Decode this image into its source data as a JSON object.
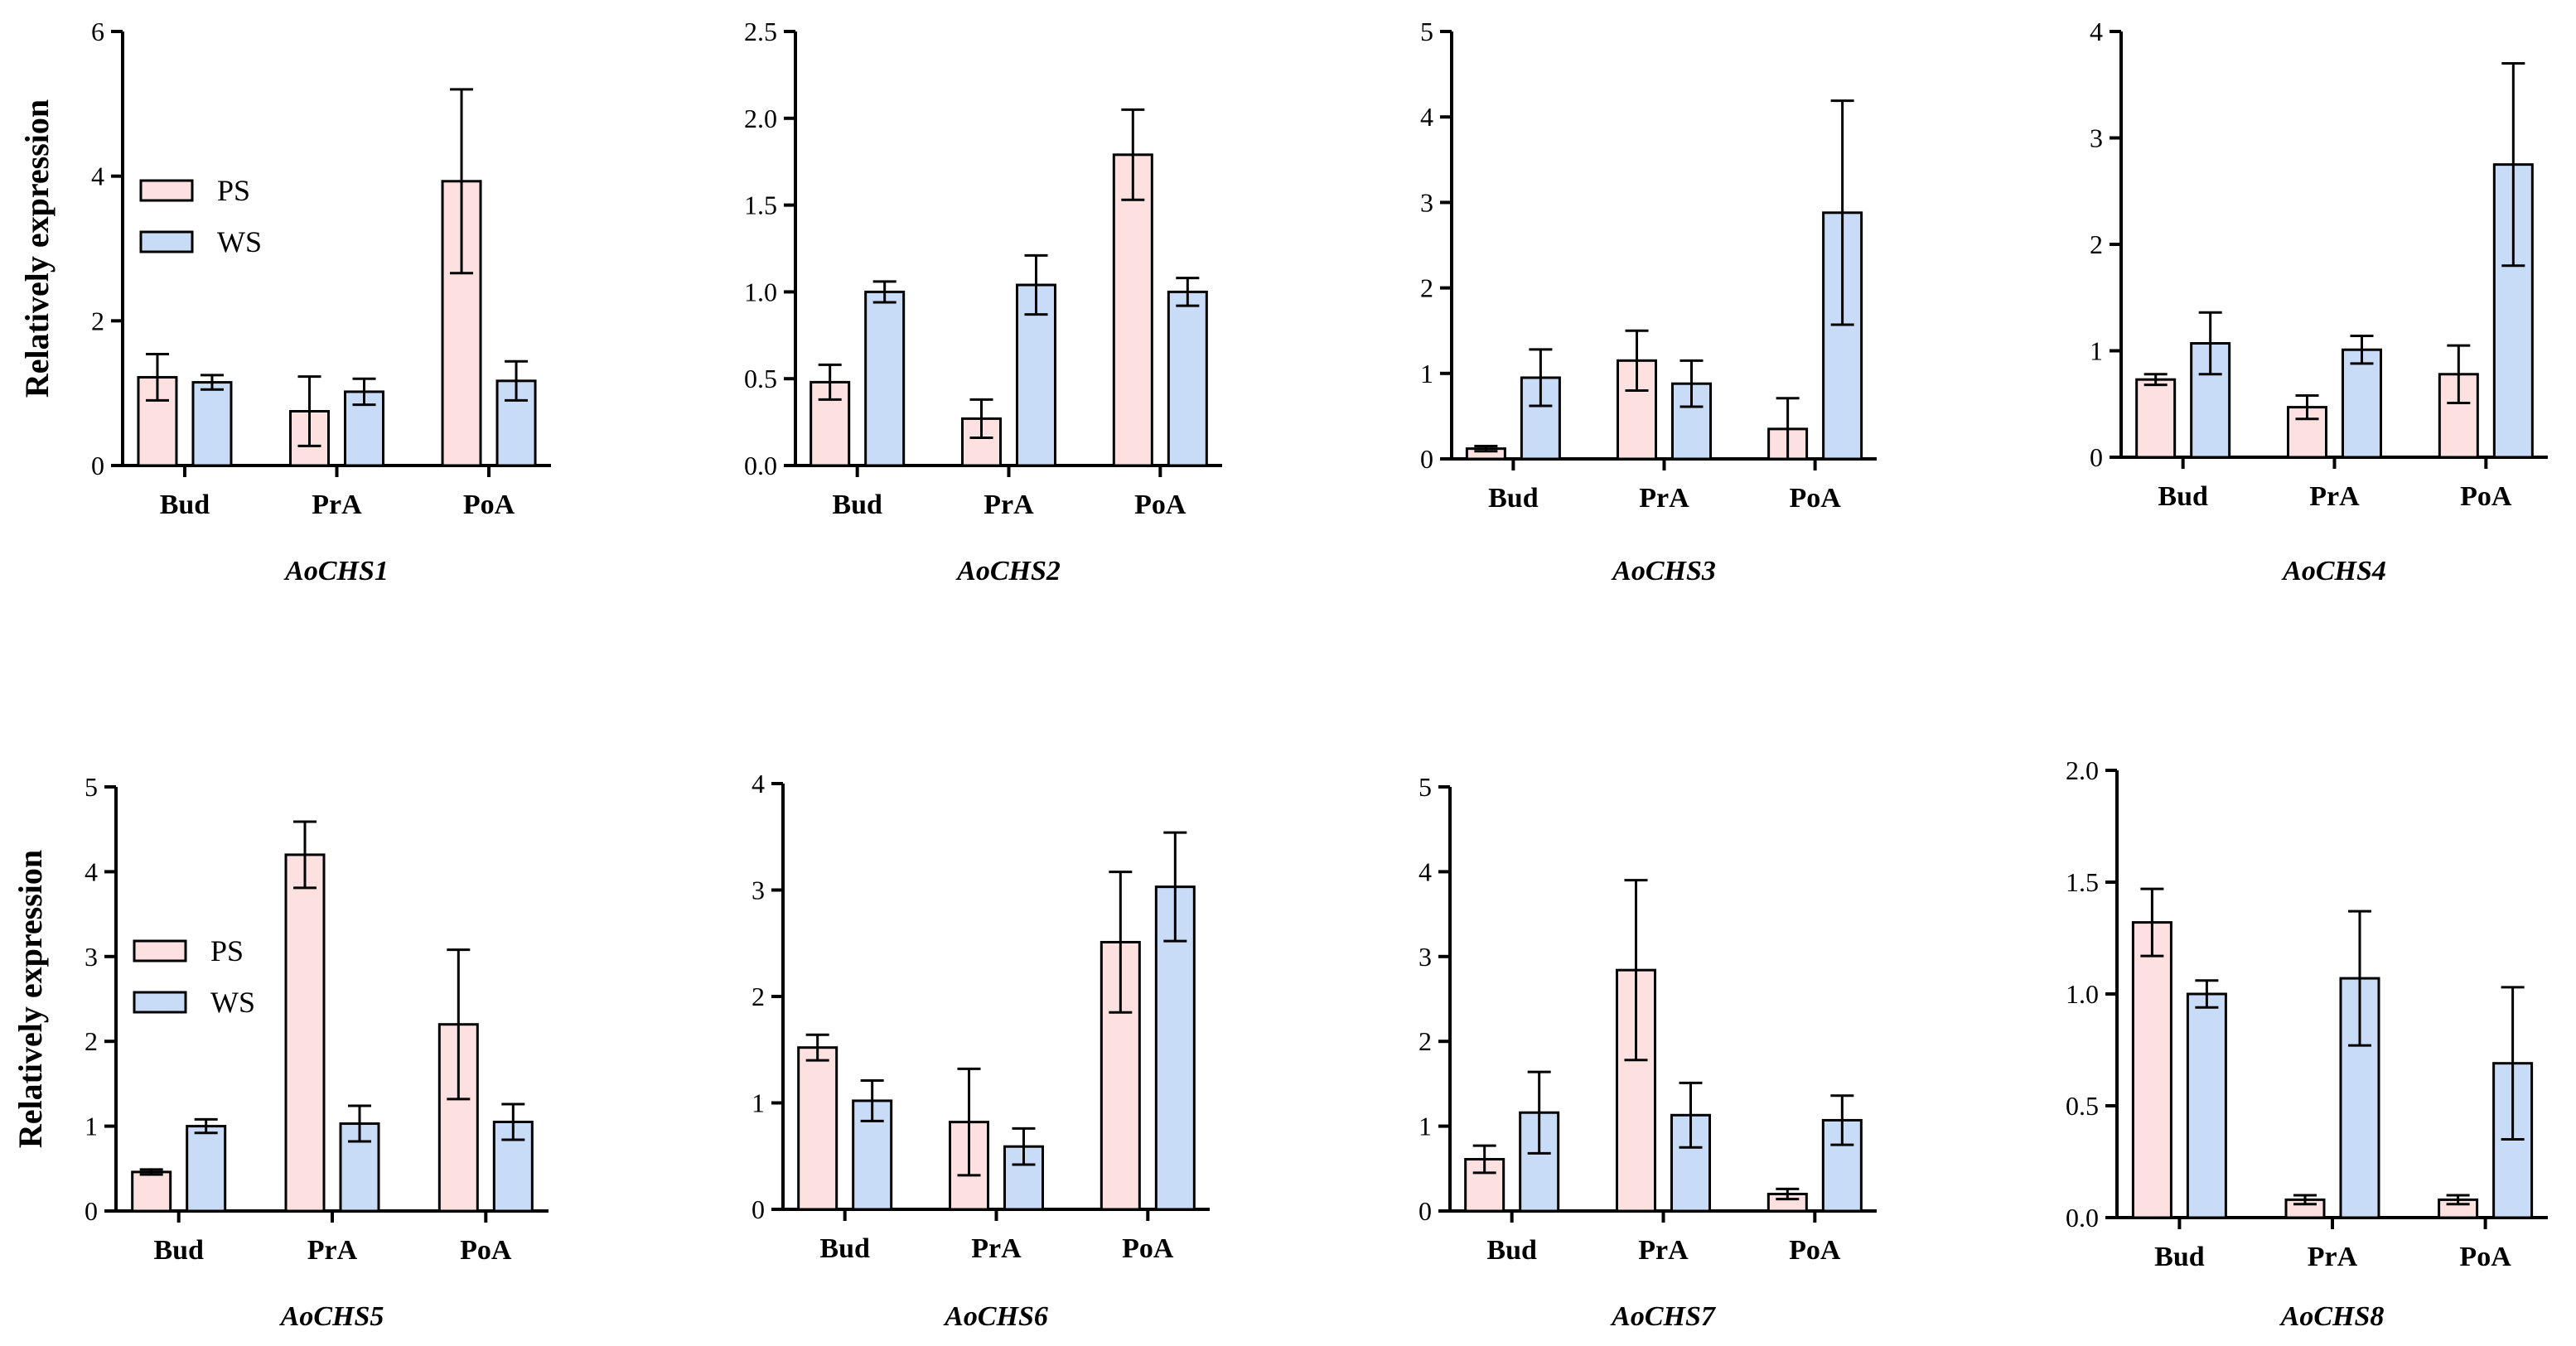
{
  "y_axis_title": "Relatively expression",
  "colors": {
    "PS": "#fde0e0",
    "WS": "#c9dcf7",
    "axis": "#000000"
  },
  "legend": [
    "PS",
    "WS"
  ],
  "chart_data": [
    {
      "type": "bar",
      "title": "AoCHS1",
      "xlabel": "",
      "ylabel": "Relatively expression",
      "categories": [
        "Bud",
        "PrA",
        "PoA"
      ],
      "ylim": [
        0,
        6
      ],
      "yticks": [
        "0",
        "2",
        "4",
        "6"
      ],
      "legend": "top-left",
      "series": [
        {
          "name": "PS",
          "values": [
            1.22,
            0.75,
            3.93
          ],
          "errors": [
            0.32,
            0.48,
            1.27
          ]
        },
        {
          "name": "WS",
          "values": [
            1.15,
            1.02,
            1.17
          ],
          "errors": [
            0.1,
            0.18,
            0.27
          ]
        }
      ]
    },
    {
      "type": "bar",
      "title": "AoCHS2",
      "xlabel": "",
      "ylabel": "",
      "categories": [
        "Bud",
        "PrA",
        "PoA"
      ],
      "ylim": [
        0,
        2.5
      ],
      "yticks": [
        "0.0",
        "0.5",
        "1.0",
        "1.5",
        "2.0",
        "2.5"
      ],
      "series": [
        {
          "name": "PS",
          "values": [
            0.48,
            0.27,
            1.79
          ],
          "errors": [
            0.1,
            0.11,
            0.26
          ]
        },
        {
          "name": "WS",
          "values": [
            1.0,
            1.04,
            1.0
          ],
          "errors": [
            0.06,
            0.17,
            0.08
          ]
        }
      ]
    },
    {
      "type": "bar",
      "title": "AoCHS3",
      "xlabel": "",
      "ylabel": "",
      "categories": [
        "Bud",
        "PrA",
        "PoA"
      ],
      "ylim": [
        0,
        5
      ],
      "yticks": [
        "0",
        "1",
        "2",
        "3",
        "4",
        "5"
      ],
      "series": [
        {
          "name": "PS",
          "values": [
            0.12,
            1.15,
            0.35
          ],
          "errors": [
            0.03,
            0.35,
            0.36
          ]
        },
        {
          "name": "WS",
          "values": [
            0.95,
            0.88,
            2.88
          ],
          "errors": [
            0.33,
            0.27,
            1.31
          ]
        }
      ]
    },
    {
      "type": "bar",
      "title": "AoCHS4",
      "xlabel": "",
      "ylabel": "",
      "categories": [
        "Bud",
        "PrA",
        "PoA"
      ],
      "ylim": [
        0,
        4
      ],
      "yticks": [
        "0",
        "1",
        "2",
        "3",
        "4"
      ],
      "series": [
        {
          "name": "PS",
          "values": [
            0.73,
            0.47,
            0.78
          ],
          "errors": [
            0.05,
            0.11,
            0.27
          ]
        },
        {
          "name": "WS",
          "values": [
            1.07,
            1.01,
            2.75
          ],
          "errors": [
            0.29,
            0.13,
            0.95
          ]
        }
      ]
    },
    {
      "type": "bar",
      "title": "AoCHS5",
      "xlabel": "",
      "ylabel": "Relatively expression",
      "categories": [
        "Bud",
        "PrA",
        "PoA"
      ],
      "ylim": [
        0,
        5
      ],
      "yticks": [
        "0",
        "1",
        "2",
        "3",
        "4",
        "5"
      ],
      "legend": "center-left",
      "series": [
        {
          "name": "PS",
          "values": [
            0.46,
            4.2,
            2.2
          ],
          "errors": [
            0.03,
            0.39,
            0.88
          ]
        },
        {
          "name": "WS",
          "values": [
            1.0,
            1.03,
            1.05
          ],
          "errors": [
            0.08,
            0.21,
            0.21
          ]
        }
      ]
    },
    {
      "type": "bar",
      "title": "AoCHS6",
      "xlabel": "",
      "ylabel": "",
      "categories": [
        "Bud",
        "PrA",
        "PoA"
      ],
      "ylim": [
        0,
        4
      ],
      "yticks": [
        "0",
        "1",
        "2",
        "3",
        "4"
      ],
      "series": [
        {
          "name": "PS",
          "values": [
            1.52,
            0.82,
            2.51
          ],
          "errors": [
            0.12,
            0.5,
            0.66
          ]
        },
        {
          "name": "WS",
          "values": [
            1.02,
            0.59,
            3.03
          ],
          "errors": [
            0.19,
            0.17,
            0.51
          ]
        }
      ]
    },
    {
      "type": "bar",
      "title": "AoCHS7",
      "xlabel": "",
      "ylabel": "",
      "categories": [
        "Bud",
        "PrA",
        "PoA"
      ],
      "ylim": [
        0,
        5
      ],
      "yticks": [
        "0",
        "1",
        "2",
        "3",
        "4",
        "5"
      ],
      "series": [
        {
          "name": "PS",
          "values": [
            0.61,
            2.84,
            0.2
          ],
          "errors": [
            0.16,
            1.06,
            0.06
          ]
        },
        {
          "name": "WS",
          "values": [
            1.16,
            1.13,
            1.07
          ],
          "errors": [
            0.48,
            0.38,
            0.29
          ]
        }
      ]
    },
    {
      "type": "bar",
      "title": "AoCHS8",
      "xlabel": "",
      "ylabel": "",
      "categories": [
        "Bud",
        "PrA",
        "PoA"
      ],
      "ylim": [
        0,
        2.0
      ],
      "yticks": [
        "0.0",
        "0.5",
        "1.0",
        "1.5",
        "2.0"
      ],
      "series": [
        {
          "name": "PS",
          "values": [
            1.32,
            0.08,
            0.08
          ],
          "errors": [
            0.15,
            0.02,
            0.02
          ]
        },
        {
          "name": "WS",
          "values": [
            1.0,
            1.07,
            0.69
          ],
          "errors": [
            0.06,
            0.3,
            0.34
          ]
        }
      ]
    }
  ]
}
